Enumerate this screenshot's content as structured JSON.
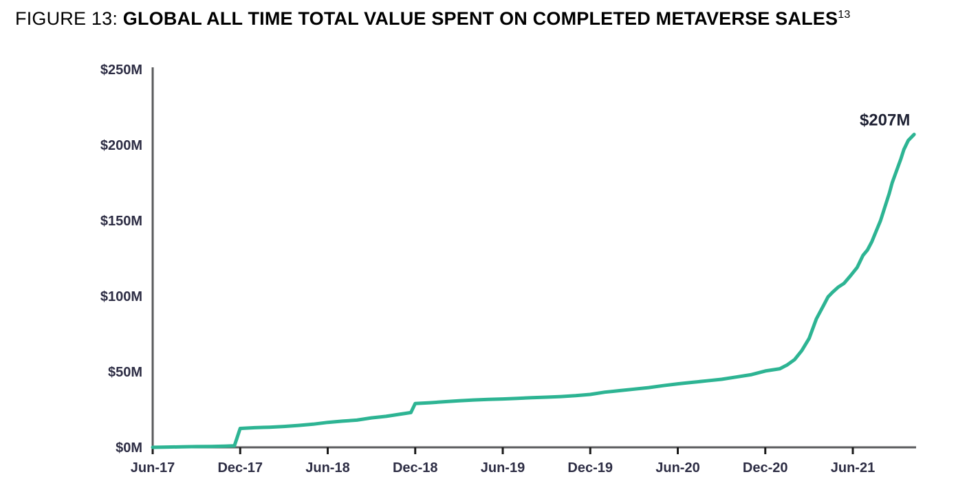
{
  "figure": {
    "label": "FIGURE 13: ",
    "title": "GLOBAL ALL TIME TOTAL VALUE SPENT ON COMPLETED METAVERSE SALES",
    "footnote_marker": "13"
  },
  "chart_data": {
    "type": "line",
    "title": "Global all time total value spent on completed metaverse sales",
    "unit": "USD millions",
    "t_unit": "months since Jun-2017",
    "x_tick_labels": [
      "Jun-17",
      "Dec-17",
      "Jun-18",
      "Dec-18",
      "Jun-19",
      "Dec-19",
      "Jun-20",
      "Dec-20",
      "Jun-21"
    ],
    "x_tick_t": [
      0,
      6,
      12,
      18,
      24,
      30,
      36,
      42,
      48
    ],
    "y_tick_labels": [
      "$0M",
      "$50M",
      "$100M",
      "$150M",
      "$200M",
      "$250M"
    ],
    "y_tick_values": [
      0,
      50,
      100,
      150,
      200,
      250
    ],
    "ylim": [
      0,
      250
    ],
    "grid": false,
    "legend": false,
    "line_color": "#2db493",
    "axis_color": "#58595b",
    "tick_color": "#1a1a1a",
    "label_color": "#2d2d44",
    "annotation": {
      "text": "$207M",
      "t": 50.2,
      "value": 207
    },
    "series": [
      {
        "name": "Cumulative completed metaverse sales value",
        "points": [
          [
            0,
            0
          ],
          [
            1,
            0.2
          ],
          [
            2,
            0.3
          ],
          [
            3,
            0.5
          ],
          [
            4,
            0.6
          ],
          [
            5,
            0.8
          ],
          [
            5.6,
            1
          ],
          [
            6,
            12.5
          ],
          [
            7,
            13
          ],
          [
            8,
            13.3
          ],
          [
            9,
            13.8
          ],
          [
            10,
            14.5
          ],
          [
            11,
            15.3
          ],
          [
            12,
            16.5
          ],
          [
            13,
            17.3
          ],
          [
            14,
            18
          ],
          [
            15,
            19.5
          ],
          [
            16,
            20.5
          ],
          [
            17,
            22
          ],
          [
            17.7,
            23
          ],
          [
            18,
            29
          ],
          [
            19,
            29.5
          ],
          [
            20,
            30.2
          ],
          [
            21,
            30.8
          ],
          [
            22,
            31.3
          ],
          [
            23,
            31.7
          ],
          [
            24,
            32
          ],
          [
            25,
            32.4
          ],
          [
            26,
            32.8
          ],
          [
            27,
            33.2
          ],
          [
            28,
            33.6
          ],
          [
            29,
            34.2
          ],
          [
            30,
            35
          ],
          [
            31,
            36.5
          ],
          [
            32,
            37.5
          ],
          [
            33,
            38.5
          ],
          [
            34,
            39.5
          ],
          [
            35,
            40.8
          ],
          [
            36,
            42
          ],
          [
            37,
            43
          ],
          [
            38,
            44
          ],
          [
            39,
            45
          ],
          [
            40,
            46.5
          ],
          [
            41,
            48
          ],
          [
            42,
            50.5
          ],
          [
            43,
            52
          ],
          [
            43.5,
            54.5
          ],
          [
            44,
            58
          ],
          [
            44.5,
            64
          ],
          [
            45,
            72
          ],
          [
            45.5,
            85
          ],
          [
            46,
            94
          ],
          [
            46.3,
            99.5
          ],
          [
            46.6,
            102.5
          ],
          [
            47,
            106
          ],
          [
            47.4,
            108.5
          ],
          [
            47.8,
            113
          ],
          [
            48.3,
            119
          ],
          [
            48.7,
            127
          ],
          [
            49,
            130.5
          ],
          [
            49.3,
            136
          ],
          [
            49.6,
            143
          ],
          [
            49.9,
            150
          ],
          [
            50.2,
            159
          ],
          [
            50.5,
            168
          ],
          [
            50.7,
            175
          ],
          [
            51,
            183
          ],
          [
            51.3,
            191
          ],
          [
            51.5,
            197
          ],
          [
            51.8,
            203
          ],
          [
            52.2,
            207
          ]
        ]
      }
    ]
  }
}
